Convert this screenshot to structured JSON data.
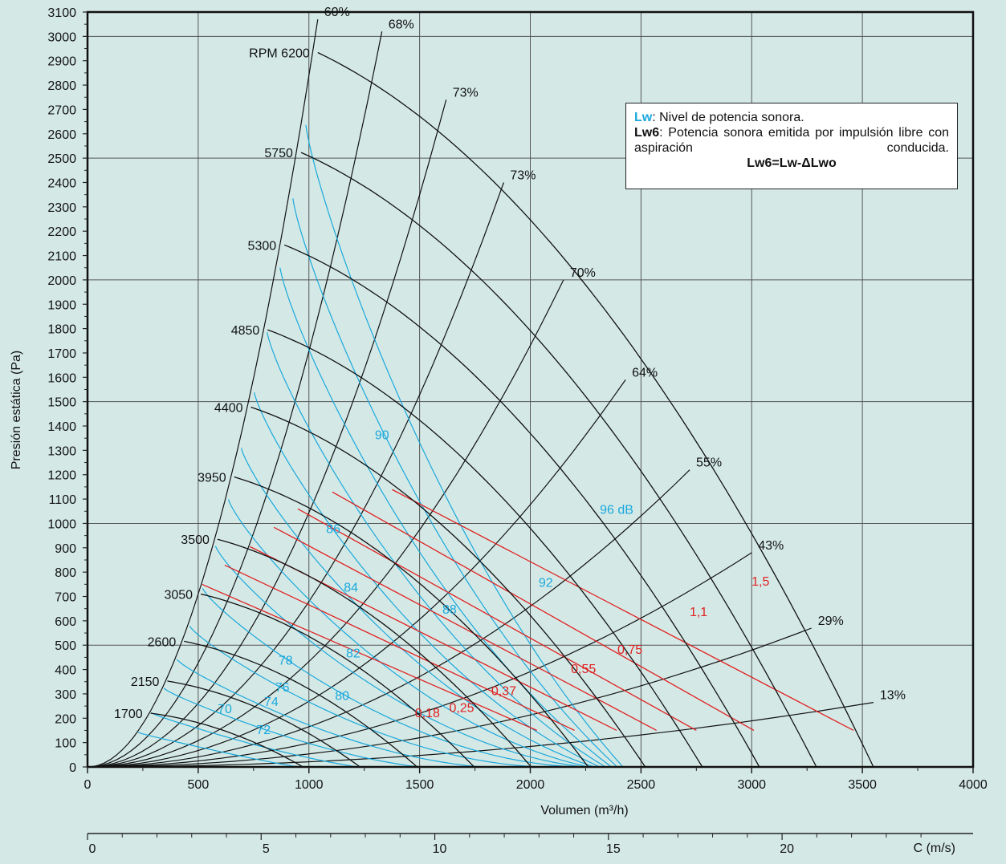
{
  "chart_data": {
    "type": "line",
    "xlabel": "Volumen (m³/h)",
    "ylabel": "Presión estática (Pa)",
    "secondary_xlabel": "C (m/s)",
    "xlim": [
      0,
      4000
    ],
    "ylim": [
      0,
      3100
    ],
    "x_ticks": [
      "0",
      "500",
      "1000",
      "1500",
      "2000",
      "2500",
      "3000",
      "3500",
      "4000"
    ],
    "y_ticks": [
      "0",
      "100",
      "200",
      "300",
      "400",
      "500",
      "600",
      "700",
      "800",
      "900",
      "1000",
      "1100",
      "1200",
      "1300",
      "1400",
      "1500",
      "1600",
      "1700",
      "1800",
      "1900",
      "2000",
      "2100",
      "2200",
      "2300",
      "2400",
      "2500",
      "2600",
      "2700",
      "2800",
      "2900",
      "3000",
      "3100"
    ],
    "c_ticks": [
      "0",
      "5",
      "10",
      "15",
      "20"
    ],
    "c_tick_values": [
      0,
      5,
      10,
      15,
      20
    ],
    "c_max": 25.5,
    "grid": true,
    "colors": {
      "rpm": "#111111",
      "efficiency": "#111111",
      "lw": "#1aa8dc",
      "kw": "#e02020",
      "background": "#d4e9e6"
    },
    "rpm_curves": [
      {
        "label": "RPM 6200",
        "rpm": 6200
      },
      {
        "label": "5750",
        "rpm": 5750
      },
      {
        "label": "5300",
        "rpm": 5300
      },
      {
        "label": "4850",
        "rpm": 4850
      },
      {
        "label": "4400",
        "rpm": 4400
      },
      {
        "label": "3950",
        "rpm": 3950
      },
      {
        "label": "3500",
        "rpm": 3500
      },
      {
        "label": "3050",
        "rpm": 3050
      },
      {
        "label": "2600",
        "rpm": 2600
      },
      {
        "label": "2150",
        "rpm": 2150
      },
      {
        "label": "1700",
        "rpm": 1700
      }
    ],
    "efficiency_lines": [
      {
        "label": "60%",
        "x": 1040,
        "y": 3070
      },
      {
        "label": "68%",
        "x": 1330,
        "y": 3020
      },
      {
        "label": "73%",
        "x": 1620,
        "y": 2740
      },
      {
        "label": "73%",
        "x": 1880,
        "y": 2400
      },
      {
        "label": "70%",
        "x": 2150,
        "y": 2000
      },
      {
        "label": "64%",
        "x": 2430,
        "y": 1590
      },
      {
        "label": "55%",
        "x": 2720,
        "y": 1220
      },
      {
        "label": "43%",
        "x": 3000,
        "y": 880
      },
      {
        "label": "29%",
        "x": 3270,
        "y": 570
      },
      {
        "label": "13%",
        "x": 3550,
        "y": 265
      }
    ],
    "lw_labels": [
      {
        "text": "70",
        "x": 620,
        "y": 220
      },
      {
        "text": "72",
        "x": 795,
        "y": 135
      },
      {
        "text": "74",
        "x": 830,
        "y": 250
      },
      {
        "text": "76",
        "x": 880,
        "y": 310
      },
      {
        "text": "78",
        "x": 895,
        "y": 420
      },
      {
        "text": "80",
        "x": 1150,
        "y": 275
      },
      {
        "text": "82",
        "x": 1200,
        "y": 450
      },
      {
        "text": "84",
        "x": 1190,
        "y": 720
      },
      {
        "text": "86",
        "x": 1110,
        "y": 960
      },
      {
        "text": "88",
        "x": 1635,
        "y": 630
      },
      {
        "text": "90",
        "x": 1330,
        "y": 1345
      },
      {
        "text": "92",
        "x": 2070,
        "y": 740
      },
      {
        "text": "96 dB",
        "x": 2390,
        "y": 1040
      }
    ],
    "kw_labels": [
      {
        "text": "0,18",
        "x": 1535,
        "y": 205
      },
      {
        "text": "0,25",
        "x": 1690,
        "y": 225
      },
      {
        "text": "0,37",
        "x": 1880,
        "y": 295
      },
      {
        "text": "0,55",
        "x": 2240,
        "y": 385
      },
      {
        "text": "0,75",
        "x": 2450,
        "y": 465
      },
      {
        "text": "1,1",
        "x": 2760,
        "y": 620
      },
      {
        "text": "1,5",
        "x": 3040,
        "y": 745
      }
    ]
  },
  "legend": {
    "lw_key": "Lw",
    "lw_text": ": Nivel de potencia sonora.",
    "lw6_key": "Lw6",
    "lw6_text": ": Potencia sonora emitida por impulsión libre con aspiración conducida.",
    "formula": "Lw6=Lw-ΔLwo"
  }
}
